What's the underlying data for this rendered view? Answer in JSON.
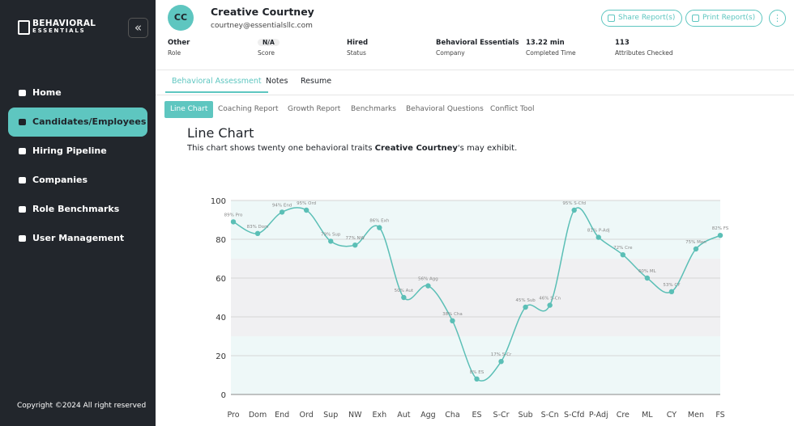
{
  "sidebar": {
    "brand_top": "BEHAVIORAL",
    "brand_bottom": "ESSENTIALS",
    "nav": [
      "Home",
      "Candidates/Employees",
      "Hiring Pipeline",
      "Companies",
      "Role Benchmarks",
      "User Management"
    ],
    "footer": "Copyright ©2024 All right reserved"
  },
  "header": {
    "initials": "CC",
    "name": "Creative Courtney",
    "email": "courtney@essentialsllc.com",
    "buttons": [
      "Share Report(s)",
      "Print Report(s)"
    ],
    "fields": [
      {
        "value": "Other",
        "label": "Role"
      },
      {
        "value": "N/A",
        "label": "Score"
      },
      {
        "value": "Hired",
        "label": "Status"
      },
      {
        "value": "Behavioral Essentials",
        "label": "Company"
      },
      {
        "value": "13.22 min",
        "label": "Completed Time"
      },
      {
        "value": "113",
        "label": "Attributes Checked"
      }
    ]
  },
  "tabs": [
    "Behavioral Assessment",
    "Notes",
    "Resume"
  ],
  "subtabs": [
    "Line Chart",
    "Coaching Report",
    "Growth Report",
    "Benchmarks",
    "Behavioral Questions",
    "Conflict Tool"
  ],
  "content": {
    "heading": "Line Chart",
    "desc_before": "This chart shows twenty one behavioral traits",
    "desc_name": "Creative Courtney",
    "desc_after": "'s may exhibit."
  },
  "chart_data": {
    "type": "line",
    "categories": [
      "Pro",
      "Dom",
      "End",
      "Ord",
      "Sup",
      "NW",
      "Exh",
      "Aut",
      "Agg",
      "Cha",
      "ES",
      "S-Cr",
      "Sub",
      "S-Cn",
      "S-Cfd",
      "P-Adj",
      "Cre",
      "ML",
      "CY",
      "Men",
      "FS"
    ],
    "values": [
      89,
      83,
      94,
      95,
      79,
      77,
      86,
      50,
      56,
      38,
      8,
      17,
      45,
      46,
      95,
      81,
      72,
      60,
      53,
      75,
      82
    ],
    "value_labels": [
      "89% Pro",
      "83% Dom",
      "94% End",
      "95% Ord",
      "79% Sup",
      "77% NW",
      "86% Exh",
      "50% Aut",
      "56% Agg",
      "38% Cha",
      "8% ES",
      "17% S-Cr",
      "45% Sub",
      "46% S-Cn",
      "95% S-Cfd",
      "81% P-Adj",
      "72% Cre",
      "60% ML",
      "53% CY",
      "75% Men",
      "82% FS"
    ],
    "color": "#5bbfb6",
    "ylim": [
      0,
      100
    ],
    "yticks": [
      0,
      20,
      40,
      60,
      80,
      100
    ],
    "grid": true,
    "bands": [
      {
        "from": 0,
        "to": 30,
        "color": "#eef8f8"
      },
      {
        "from": 30,
        "to": 70,
        "color": "#f0f0f2"
      },
      {
        "from": 70,
        "to": 100,
        "color": "#eef8f8"
      }
    ]
  }
}
